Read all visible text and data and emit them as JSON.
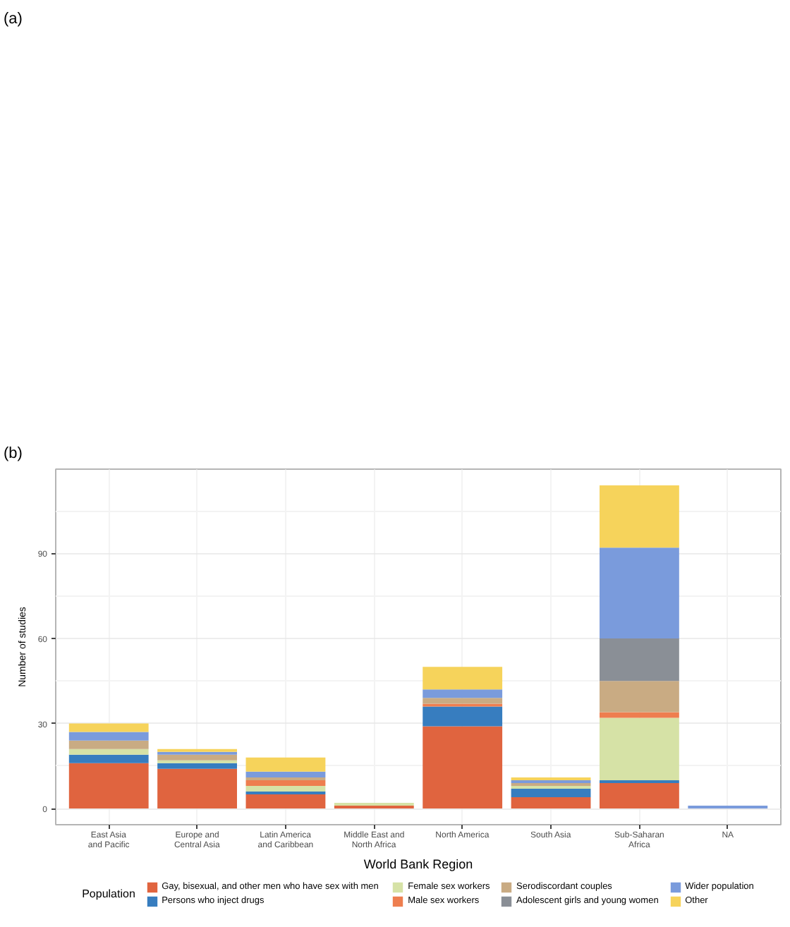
{
  "chart_data": [
    {
      "type": "other",
      "title": "(a)"
    },
    {
      "type": "bar",
      "title": "(b)",
      "xlabel": "World Bank Region",
      "ylabel": "Number of studies",
      "legend_title": "Population",
      "categories": [
        "East Asia and Pacific",
        "Europe and Central Asia",
        "Latin America and Caribbean",
        "Middle East and North Africa",
        "North America",
        "South Asia",
        "Sub-Saharan Africa",
        "NA"
      ],
      "stacked": true,
      "series": [
        {
          "name": "Gay, bisexual, and other men who have sex with men",
          "color": "#e0643f",
          "values": [
            16,
            14,
            5,
            1,
            29,
            4,
            9,
            null
          ]
        },
        {
          "name": "Persons who inject drugs",
          "color": "#377dbf",
          "values": [
            3,
            2,
            1,
            null,
            7,
            3,
            1,
            null
          ]
        },
        {
          "name": "Female sex workers",
          "color": "#d6e2a6",
          "values": [
            2,
            1,
            2,
            1,
            null,
            1,
            22,
            null
          ]
        },
        {
          "name": "Male sex workers",
          "color": "#ee7e4f",
          "values": [
            null,
            null,
            2,
            null,
            1,
            null,
            2,
            null
          ]
        },
        {
          "name": "Serodiscordant couples",
          "color": "#c9ab83",
          "values": [
            3,
            2,
            1,
            null,
            2,
            1,
            11,
            null
          ]
        },
        {
          "name": "Adolescent girls and young women",
          "color": "#8a8f96",
          "values": [
            null,
            null,
            null,
            null,
            null,
            null,
            15,
            null
          ]
        },
        {
          "name": "Wider population",
          "color": "#7a9bdc",
          "values": [
            3,
            1,
            2,
            null,
            3,
            1,
            32,
            1
          ]
        },
        {
          "name": "Other",
          "color": "#f6d35b",
          "values": [
            3,
            1,
            5,
            null,
            8,
            1,
            22,
            null
          ]
        }
      ],
      "ylim": [
        -5.7,
        119.7
      ],
      "yticks": [
        0,
        30,
        60,
        90
      ],
      "grid": true,
      "legend": "bottom"
    }
  ]
}
